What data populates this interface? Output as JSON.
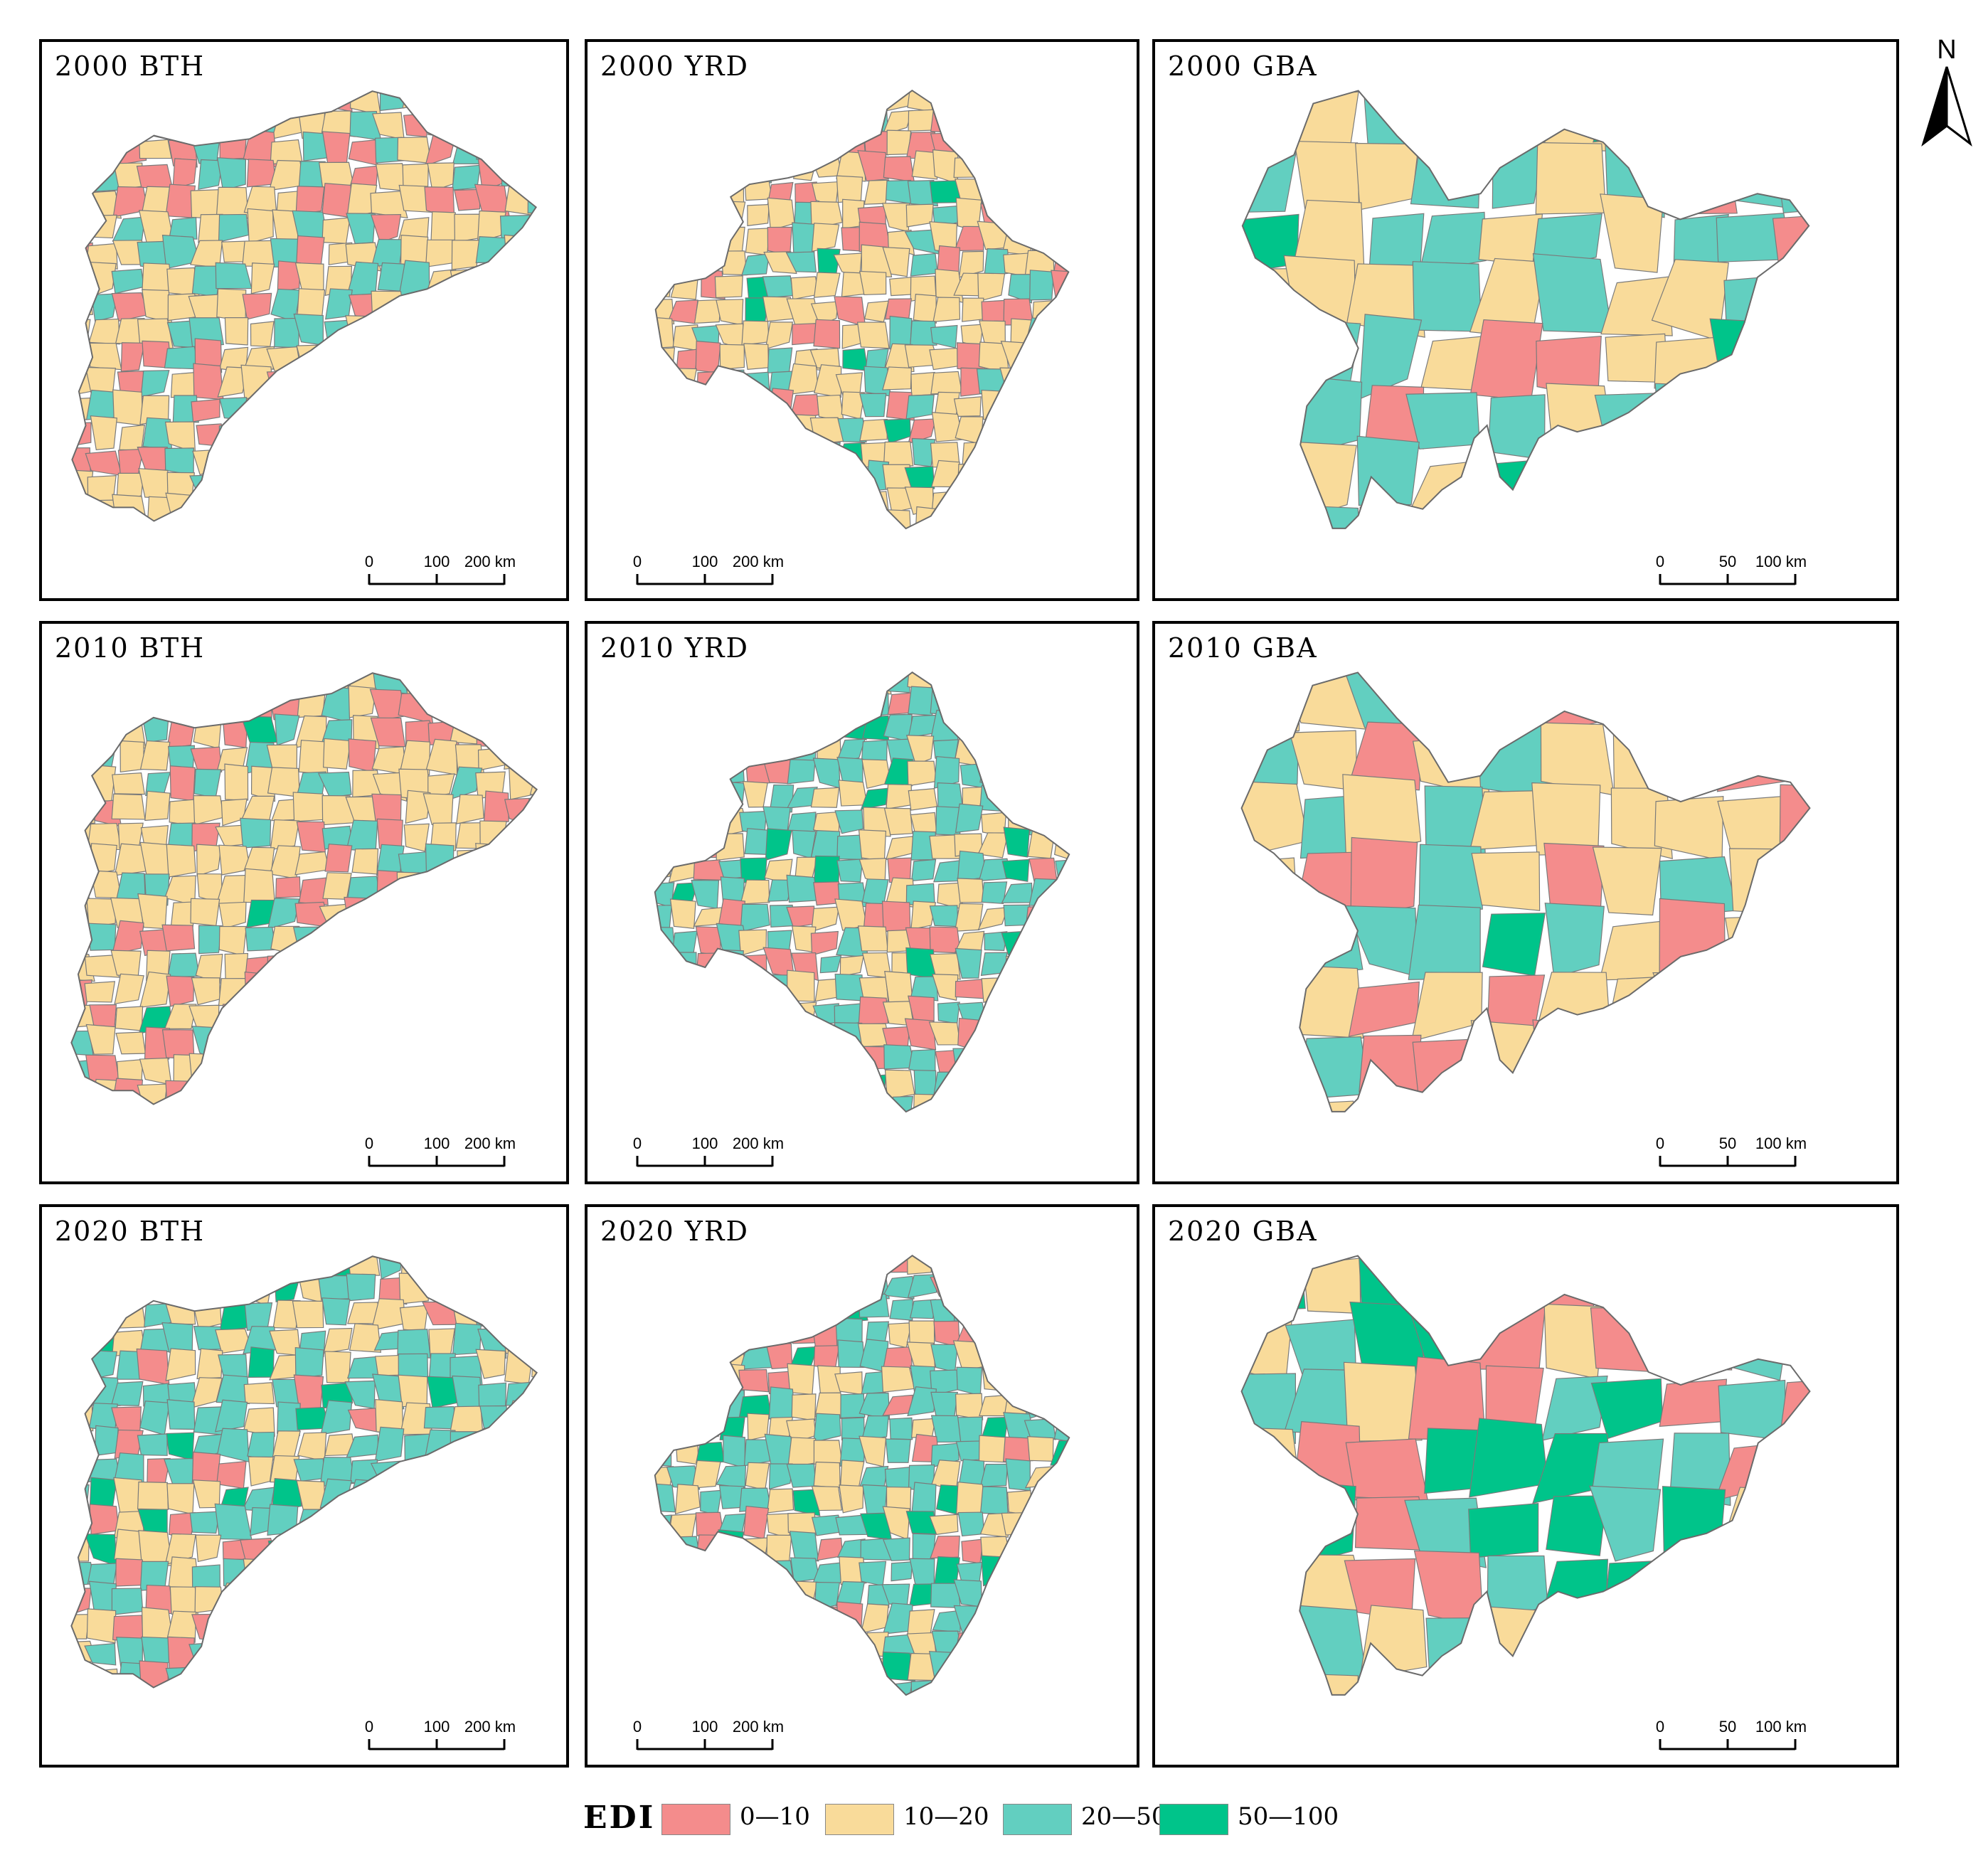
{
  "figure": {
    "panels": [
      {
        "title": "2000 BTH",
        "region": "BTH",
        "year": "2000",
        "scale": {
          "ticks": [
            "0",
            "100",
            "200 km"
          ]
        },
        "dominant_class": "10—20"
      },
      {
        "title": "2000 YRD",
        "region": "YRD",
        "year": "2000",
        "scale": {
          "ticks": [
            "0",
            "100",
            "200 km"
          ]
        },
        "dominant_class": "10—20"
      },
      {
        "title": "2000 GBA",
        "region": "GBA",
        "year": "2000",
        "scale": {
          "ticks": [
            "0",
            "50",
            "100 km"
          ]
        },
        "dominant_class": "20—50"
      },
      {
        "title": "2010 BTH",
        "region": "BTH",
        "year": "2010",
        "scale": {
          "ticks": [
            "0",
            "100",
            "200 km"
          ]
        },
        "dominant_class": "10—20"
      },
      {
        "title": "2010 YRD",
        "region": "YRD",
        "year": "2010",
        "scale": {
          "ticks": [
            "0",
            "100",
            "200 km"
          ]
        },
        "dominant_class": "20—50"
      },
      {
        "title": "2010 GBA",
        "region": "GBA",
        "year": "2010",
        "scale": {
          "ticks": [
            "0",
            "50",
            "100 km"
          ]
        },
        "dominant_class": "10—20"
      },
      {
        "title": "2020 BTH",
        "region": "BTH",
        "year": "2020",
        "scale": {
          "ticks": [
            "0",
            "100",
            "200 km"
          ]
        },
        "dominant_class": "20—50"
      },
      {
        "title": "2020 YRD",
        "region": "YRD",
        "year": "2020",
        "scale": {
          "ticks": [
            "0",
            "100",
            "200 km"
          ]
        },
        "dominant_class": "20—50"
      },
      {
        "title": "2020 GBA",
        "region": "GBA",
        "year": "2020",
        "scale": {
          "ticks": [
            "0",
            "50",
            "100 km"
          ]
        },
        "dominant_class": "50—100"
      }
    ],
    "north_arrow": {
      "label": "N",
      "icon": "north-arrow-icon"
    },
    "legend": {
      "title": "EDI",
      "items": [
        {
          "label": "0—10",
          "color": "#F48C8C"
        },
        {
          "label": "10—20",
          "color": "#F9DB9A"
        },
        {
          "label": "20—50",
          "color": "#62CFC0"
        },
        {
          "label": "50—100",
          "color": "#00C48A"
        }
      ]
    }
  }
}
